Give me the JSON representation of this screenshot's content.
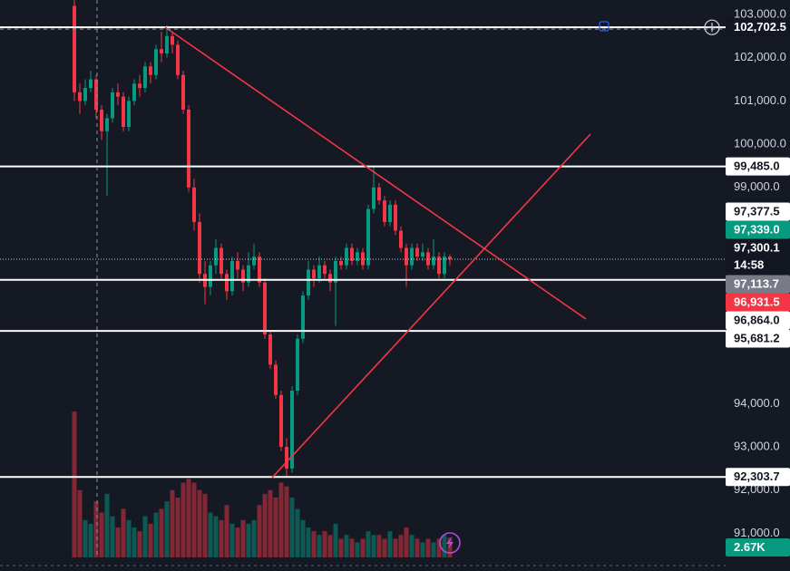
{
  "chart_data": {
    "type": "candlestick",
    "ylim": [
      90443,
      103335
    ],
    "yticks": [
      {
        "value": 103000,
        "label": "103,000.0"
      },
      {
        "value": 102000,
        "label": "102,000.0"
      },
      {
        "value": 101000,
        "label": "101,000.0"
      },
      {
        "value": 100000,
        "label": "100,000.0"
      },
      {
        "value": 99000,
        "label": "99,000.0"
      },
      {
        "value": 94000,
        "label": "94,000.0"
      },
      {
        "value": 93000,
        "label": "93,000.0"
      },
      {
        "value": 92000,
        "label": "92,000.0"
      },
      {
        "value": 91000,
        "label": "91,000.0"
      }
    ],
    "grid": false,
    "up_color": "#089981",
    "down_color": "#f23645",
    "candles": [
      [
        103200,
        103400,
        101000,
        101200
      ],
      [
        101200,
        101400,
        100700,
        101000
      ],
      [
        101000,
        101500,
        100900,
        101300
      ],
      [
        101300,
        101700,
        101200,
        101500
      ],
      [
        101500,
        101600,
        100600,
        100800
      ],
      [
        100800,
        100900,
        100100,
        100300
      ],
      [
        100300,
        100700,
        98800,
        100600
      ],
      [
        100600,
        101300,
        100500,
        101200
      ],
      [
        101200,
        101400,
        100900,
        101100
      ],
      [
        101100,
        101200,
        100300,
        100400
      ],
      [
        100400,
        101100,
        100300,
        101000
      ],
      [
        101000,
        101500,
        100900,
        101400
      ],
      [
        101400,
        101600,
        101100,
        101300
      ],
      [
        101300,
        101900,
        101200,
        101800
      ],
      [
        101800,
        101900,
        101400,
        101600
      ],
      [
        101600,
        102300,
        101500,
        102200
      ],
      [
        102200,
        102600,
        101900,
        102100
      ],
      [
        102100,
        102750,
        102000,
        102500
      ],
      [
        102500,
        102600,
        102100,
        102300
      ],
      [
        102300,
        102400,
        101500,
        101600
      ],
      [
        101600,
        101700,
        100700,
        100800
      ],
      [
        100800,
        100900,
        98900,
        99000
      ],
      [
        99000,
        99200,
        98000,
        98200
      ],
      [
        98200,
        98400,
        96800,
        97000
      ],
      [
        97000,
        97300,
        96300,
        96700
      ],
      [
        96700,
        97300,
        96500,
        97200
      ],
      [
        97200,
        97800,
        97000,
        97600
      ],
      [
        97600,
        97700,
        96900,
        97000
      ],
      [
        97000,
        97100,
        96400,
        96600
      ],
      [
        96600,
        97400,
        96500,
        97300
      ],
      [
        97300,
        97500,
        96900,
        97100
      ],
      [
        97100,
        97200,
        96600,
        96800
      ],
      [
        96800,
        97500,
        96700,
        97200
      ],
      [
        97200,
        97700,
        97100,
        97400
      ],
      [
        97400,
        97500,
        96700,
        96800
      ],
      [
        96800,
        96900,
        95500,
        95600
      ],
      [
        95600,
        95700,
        94800,
        94900
      ],
      [
        94900,
        95000,
        94100,
        94200
      ],
      [
        94200,
        94300,
        92900,
        93000
      ],
      [
        93000,
        93200,
        92300,
        92500
      ],
      [
        92500,
        94400,
        92400,
        94300
      ],
      [
        94300,
        95600,
        94200,
        95500
      ],
      [
        95500,
        96600,
        95400,
        96500
      ],
      [
        96500,
        97300,
        96400,
        97100
      ],
      [
        97100,
        97200,
        96700,
        96900
      ],
      [
        96900,
        97400,
        96800,
        97200
      ],
      [
        97200,
        97300,
        96900,
        97000
      ],
      [
        97000,
        97100,
        96600,
        96800
      ],
      [
        96800,
        97400,
        95800,
        97300
      ],
      [
        97300,
        97400,
        97100,
        97200
      ],
      [
        97200,
        97700,
        97100,
        97600
      ],
      [
        97600,
        97700,
        97200,
        97300
      ],
      [
        97300,
        97600,
        97200,
        97500
      ],
      [
        97500,
        97600,
        97100,
        97200
      ],
      [
        97200,
        98600,
        97100,
        98500
      ],
      [
        98500,
        99485,
        98400,
        99000
      ],
      [
        99000,
        99100,
        98600,
        98700
      ],
      [
        98700,
        98800,
        98100,
        98200
      ],
      [
        98200,
        98700,
        98100,
        98600
      ],
      [
        98600,
        98700,
        97900,
        98000
      ],
      [
        98000,
        98100,
        97500,
        97600
      ],
      [
        97600,
        97700,
        96700,
        97200
      ],
      [
        97200,
        97700,
        97100,
        97600
      ],
      [
        97600,
        97700,
        97300,
        97400
      ],
      [
        97400,
        97700,
        97300,
        97500
      ],
      [
        97500,
        97600,
        97100,
        97200
      ],
      [
        97200,
        97800,
        97100,
        97400
      ],
      [
        97400,
        97500,
        96900,
        97000
      ],
      [
        97000,
        97500,
        96900,
        97400
      ],
      [
        97400,
        97450,
        97200,
        97339
      ]
    ],
    "volume": [
      19500,
      9000,
      5000,
      4500,
      7500,
      6000,
      8500,
      5500,
      4000,
      6500,
      5000,
      4000,
      3500,
      5500,
      4500,
      6000,
      6500,
      7500,
      9000,
      8000,
      10000,
      10500,
      10000,
      9000,
      8500,
      6000,
      5500,
      5000,
      7000,
      4500,
      4000,
      5000,
      4500,
      5000,
      7000,
      8500,
      9000,
      8000,
      10000,
      9500,
      8000,
      6500,
      5000,
      4000,
      3500,
      3000,
      3500,
      3000,
      4500,
      2500,
      3000,
      2500,
      2000,
      2500,
      3500,
      3000,
      3000,
      2500,
      3500,
      2500,
      3000,
      4000,
      3000,
      2500,
      2000,
      2500,
      2000,
      2500,
      3000,
      2670
    ],
    "volume_ylim": [
      0,
      20000
    ],
    "volume_last_label": "2.67K",
    "price_labels": [
      {
        "value": 102702.5,
        "label": "102,702.5",
        "color": "#131722",
        "line": "solid"
      },
      {
        "value": 99485.0,
        "label": "99,485.0",
        "color": "#ffffff",
        "line": "solid"
      },
      {
        "value": 97377.5,
        "label": "97,377.5",
        "color": "#ffffff"
      },
      {
        "value": 97339.0,
        "label": "97,339.0",
        "color": "#089981",
        "line": "dotted"
      },
      {
        "value": 97300.1,
        "label": "97,300.1",
        "color": "#131722",
        "countdown": "14:58"
      },
      {
        "value": 97113.7,
        "label": "97,113.7",
        "color": "#787b86"
      },
      {
        "value": 96931.5,
        "label": "96,931.5",
        "color": "#f23645"
      },
      {
        "value": 96864.0,
        "label": "96,864.0",
        "color": "#ffffff",
        "line": "solid"
      },
      {
        "value": 95681.2,
        "label": "95,681.2",
        "color": "#ffffff",
        "line": "solid"
      },
      {
        "value": 92303.7,
        "label": "92,303.7",
        "color": "#ffffff",
        "line": "solid"
      }
    ]
  }
}
